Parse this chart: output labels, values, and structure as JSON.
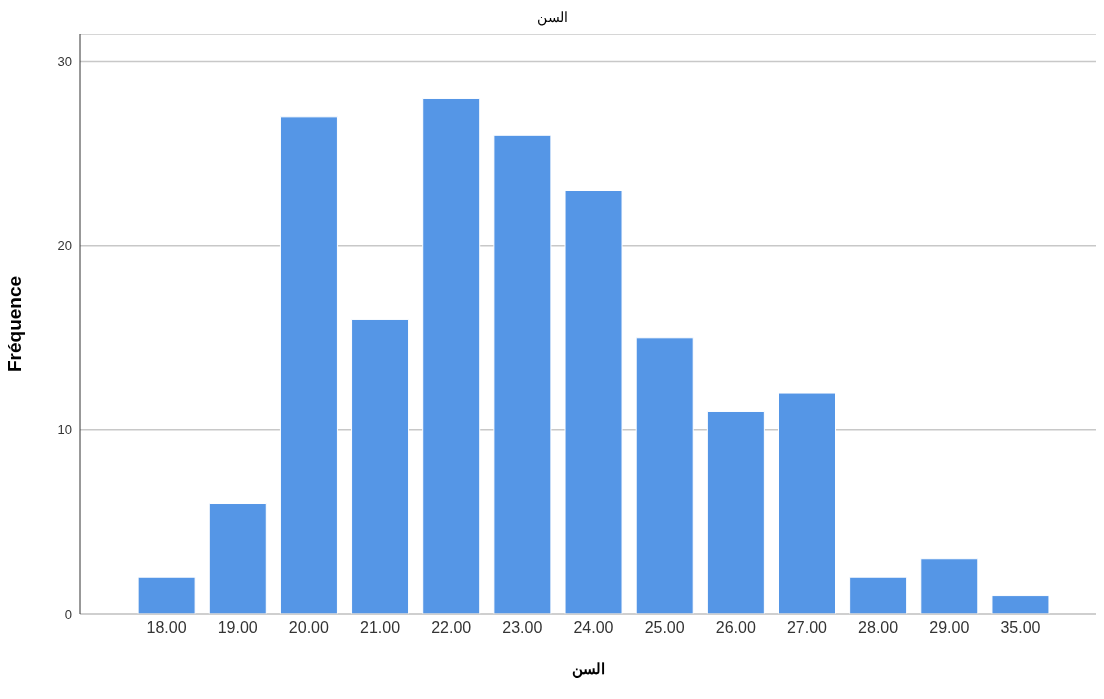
{
  "chart_data": {
    "type": "bar",
    "title": "السن",
    "xlabel": "السن",
    "ylabel": "Fréquence",
    "categories": [
      "18.00",
      "19.00",
      "20.00",
      "21.00",
      "22.00",
      "23.00",
      "24.00",
      "25.00",
      "26.00",
      "27.00",
      "28.00",
      "29.00",
      "35.00"
    ],
    "values": [
      2,
      6,
      27,
      16,
      28,
      26,
      23,
      15,
      11,
      12,
      2,
      3,
      1
    ],
    "color": "#5596e6",
    "ylim": [
      0,
      31.5
    ],
    "yticks": [
      0,
      10,
      20,
      30
    ],
    "grid": "y"
  }
}
